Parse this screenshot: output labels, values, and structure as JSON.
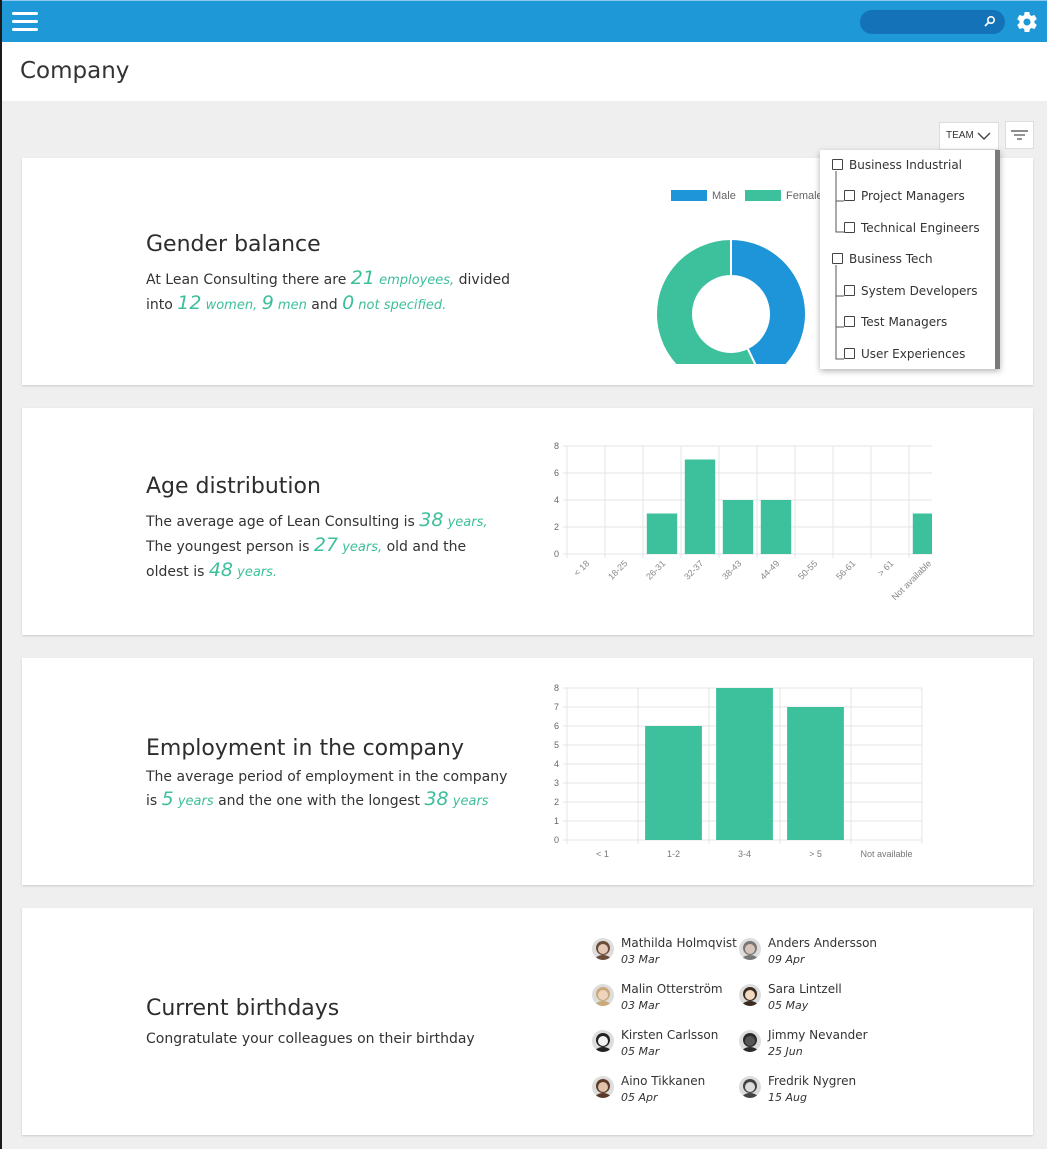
{
  "header": {
    "search_placeholder": ""
  },
  "page": {
    "title": "Company"
  },
  "filter": {
    "team_label": "TEAM",
    "groups": [
      {
        "label": "Business Industrial",
        "children": [
          "Project Managers",
          "Technical Engineers"
        ]
      },
      {
        "label": "Business Tech",
        "children": [
          "System Developers",
          "Test Managers",
          "User Experiences"
        ]
      }
    ]
  },
  "gender": {
    "title": "Gender balance",
    "t1": "At Lean Consulting there are ",
    "employees_num": "21",
    "employees_word": " employees,",
    "t2": " divided into ",
    "women_num": "12",
    "women_word": " women,",
    "t3": " ",
    "men_num": "9",
    "men_word": " men",
    "t4": " and ",
    "ns_num": "0",
    "ns_word": " not specified."
  },
  "age": {
    "title": "Age distribution",
    "t1": "The average age of Lean Consulting is ",
    "avg_num": "38",
    "avg_word": " years,",
    "t2": " The youngest person is ",
    "young_num": "27",
    "young_word": " years,",
    "t3": " old and the oldest is ",
    "old_num": "48",
    "old_word": " years."
  },
  "employment": {
    "title": "Employment in the company",
    "t1": "The average period of employment in the company is ",
    "avg_num": "5",
    "avg_word": " years",
    "t2": " and the one with the longest ",
    "long_num": "38",
    "long_word": " years"
  },
  "birthdays": {
    "title": "Current birthdays",
    "subtitle": "Congratulate your colleagues on their birthday",
    "people": [
      {
        "name": "Mathilda Holmqvist",
        "date": "03 Mar"
      },
      {
        "name": "Anders Andersson",
        "date": "09 Apr"
      },
      {
        "name": "Malin Otterström",
        "date": "03 Mar"
      },
      {
        "name": "Sara Lintzell",
        "date": "05 May"
      },
      {
        "name": "Kirsten Carlsson",
        "date": "05 Mar"
      },
      {
        "name": "Jimmy Nevander",
        "date": "25 Jun"
      },
      {
        "name": "Aino Tikkanen",
        "date": "05 Apr"
      },
      {
        "name": "Fredrik Nygren",
        "date": "15 Aug"
      }
    ]
  },
  "colors": {
    "accent": "#3dbf9b",
    "male": "#1e95d8",
    "header": "#1e98d7"
  },
  "chart_data": [
    {
      "type": "pie",
      "labels": [
        "Male",
        "Female"
      ],
      "values": [
        9,
        12
      ],
      "colors": [
        "#1e95d8",
        "#3cc19c"
      ],
      "legend": "top"
    },
    {
      "type": "bar",
      "categories": [
        "< 18",
        "18-25",
        "26-31",
        "32-37",
        "38-43",
        "44-49",
        "50-55",
        "56-61",
        "> 61",
        "Not available"
      ],
      "values": [
        0,
        0,
        3,
        7,
        4,
        4,
        0,
        0,
        0,
        3
      ],
      "ylim": [
        0,
        8
      ],
      "yticks": [
        0,
        2,
        4,
        6,
        8
      ],
      "grid": true
    },
    {
      "type": "bar",
      "categories": [
        "< 1",
        "1-2",
        "3-4",
        "> 5",
        "Not available"
      ],
      "values": [
        0,
        6,
        8,
        7,
        0
      ],
      "ylim": [
        0,
        8
      ],
      "yticks": [
        0,
        1,
        2,
        3,
        4,
        5,
        6,
        7,
        8
      ],
      "grid": true
    }
  ]
}
